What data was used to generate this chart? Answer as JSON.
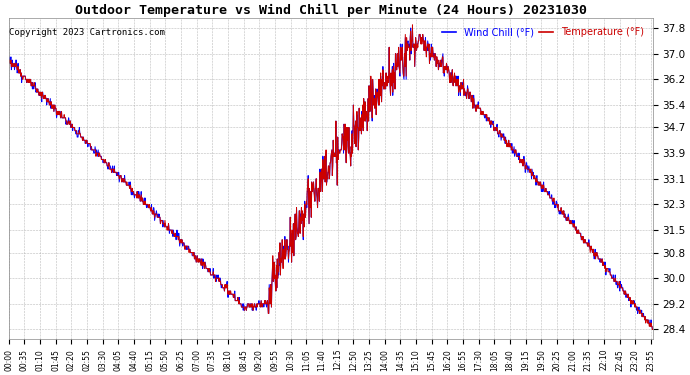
{
  "title": "Outdoor Temperature vs Wind Chill per Minute (24 Hours) 20231030",
  "copyright": "Copyright 2023 Cartronics.com",
  "legend_wind_chill": "Wind Chill (°F)",
  "legend_temperature": "Temperature (°F)",
  "background_color": "#ffffff",
  "plot_bg_color": "#ffffff",
  "grid_color": "#aaaaaa",
  "title_color": "#000000",
  "copyright_color": "#000000",
  "wind_chill_color": "#0000ff",
  "temperature_color": "#cc0000",
  "y_ticks": [
    28.4,
    29.2,
    30.0,
    30.8,
    31.5,
    32.3,
    33.1,
    33.9,
    34.7,
    35.4,
    36.2,
    37.0,
    37.8
  ],
  "ylim": [
    28.1,
    38.1
  ],
  "x_tick_step": 35,
  "total_minutes": 1440
}
